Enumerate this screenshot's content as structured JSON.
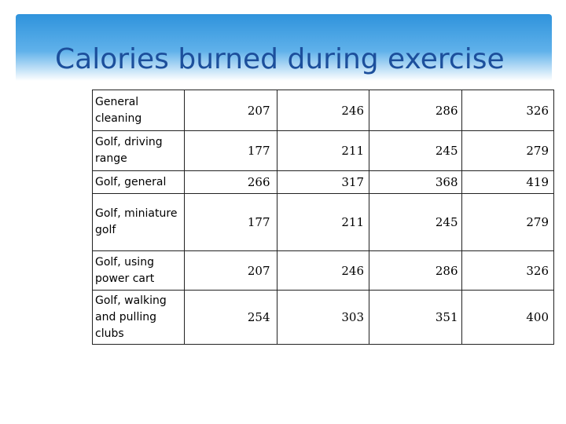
{
  "slide": {
    "title": "Calories burned during exercise"
  },
  "table": {
    "rows": [
      {
        "label": "General cleaning",
        "values": [
          "207",
          "246",
          "286",
          "326"
        ]
      },
      {
        "label": "Golf, driving range",
        "values": [
          "177",
          "211",
          "245",
          "279"
        ]
      },
      {
        "label": "Golf, general",
        "values": [
          "266",
          "317",
          "368",
          "419"
        ]
      },
      {
        "label": "Golf, miniature golf",
        "values": [
          "177",
          "211",
          "245",
          "279"
        ]
      },
      {
        "label": "Golf, using power cart",
        "values": [
          "207",
          "246",
          "286",
          "326"
        ]
      },
      {
        "label": "Golf, walking and pulling clubs",
        "values": [
          "254",
          "303",
          "351",
          "400"
        ]
      }
    ]
  },
  "colors": {
    "title": "#1c4f9c",
    "header_gradient_top": "#2f93dc",
    "header_gradient_mid": "#5fb1ea",
    "table_border": "#222222"
  }
}
